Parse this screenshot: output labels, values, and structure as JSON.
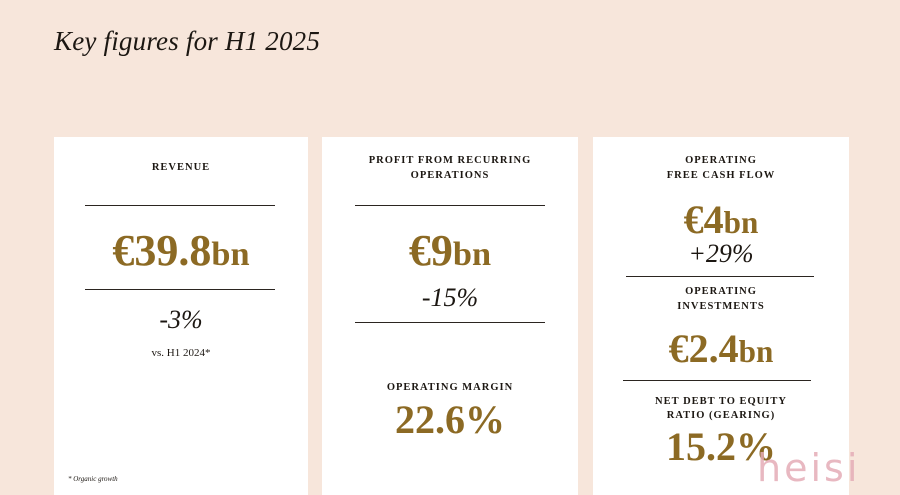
{
  "title": "Key figures for H1 2025",
  "revenue": {
    "label": "REVENUE",
    "value": "€39.8",
    "unit": "bn",
    "change": "-3%",
    "comparison": "vs. H1 2024*",
    "footnote": "* Organic growth"
  },
  "profit": {
    "label_line1": "PROFIT FROM RECURRING",
    "label_line2": "OPERATIONS",
    "value": "€9",
    "unit": "bn",
    "change": "-15%",
    "margin_label": "OPERATING MARGIN",
    "margin_value": "22.6%"
  },
  "cash": {
    "label_line1": "OPERATING",
    "label_line2": "FREE CASH FLOW",
    "value": "€4",
    "unit": "bn",
    "change": "+29%",
    "investments_label_line1": "OPERATING",
    "investments_label_line2": "INVESTMENTS",
    "investments_value": "€2.4",
    "investments_unit": "bn",
    "gearing_label_line1": "NET DEBT TO EQUITY",
    "gearing_label_line2": "RATIO (GEARING)",
    "gearing_value": "15.2%"
  },
  "watermark": "heisi"
}
